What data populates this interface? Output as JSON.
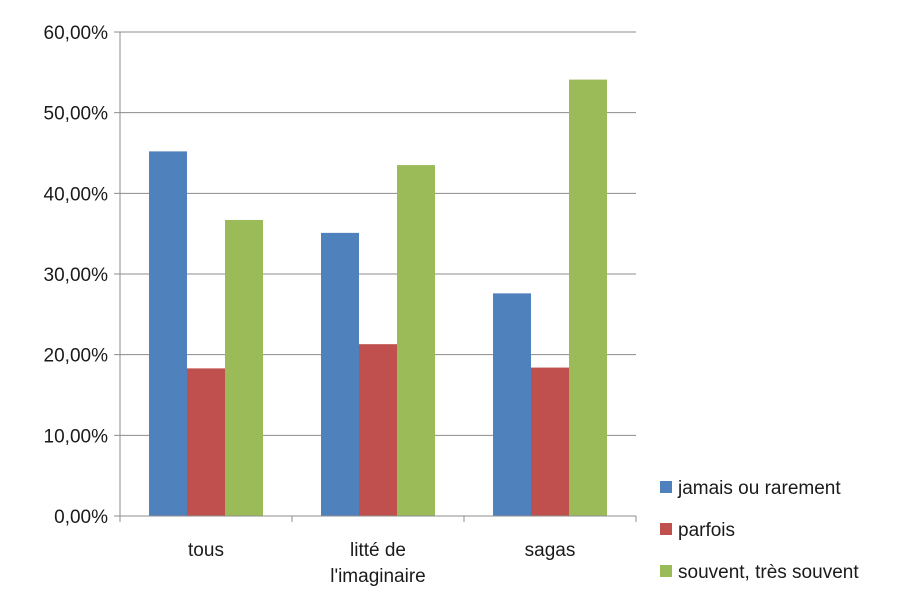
{
  "chart_data": {
    "type": "bar",
    "categories": [
      [
        "tous"
      ],
      [
        "litté de",
        "l'imaginaire"
      ],
      [
        "sagas"
      ]
    ],
    "series": [
      {
        "name": "jamais ou rarement",
        "color": "#4f81bd",
        "values": [
          45.2,
          35.1,
          27.6
        ]
      },
      {
        "name": "parfois",
        "color": "#c0504d",
        "values": [
          18.3,
          21.3,
          18.4
        ]
      },
      {
        "name": "souvent, très souvent",
        "color": "#9bbb59",
        "values": [
          36.7,
          43.5,
          54.1
        ]
      }
    ],
    "yticks": [
      "0,00%",
      "10,00%",
      "20,00%",
      "30,00%",
      "40,00%",
      "50,00%",
      "60,00%"
    ],
    "ylim": [
      0,
      60
    ],
    "grid": true,
    "legend_position": "right-bottom"
  }
}
